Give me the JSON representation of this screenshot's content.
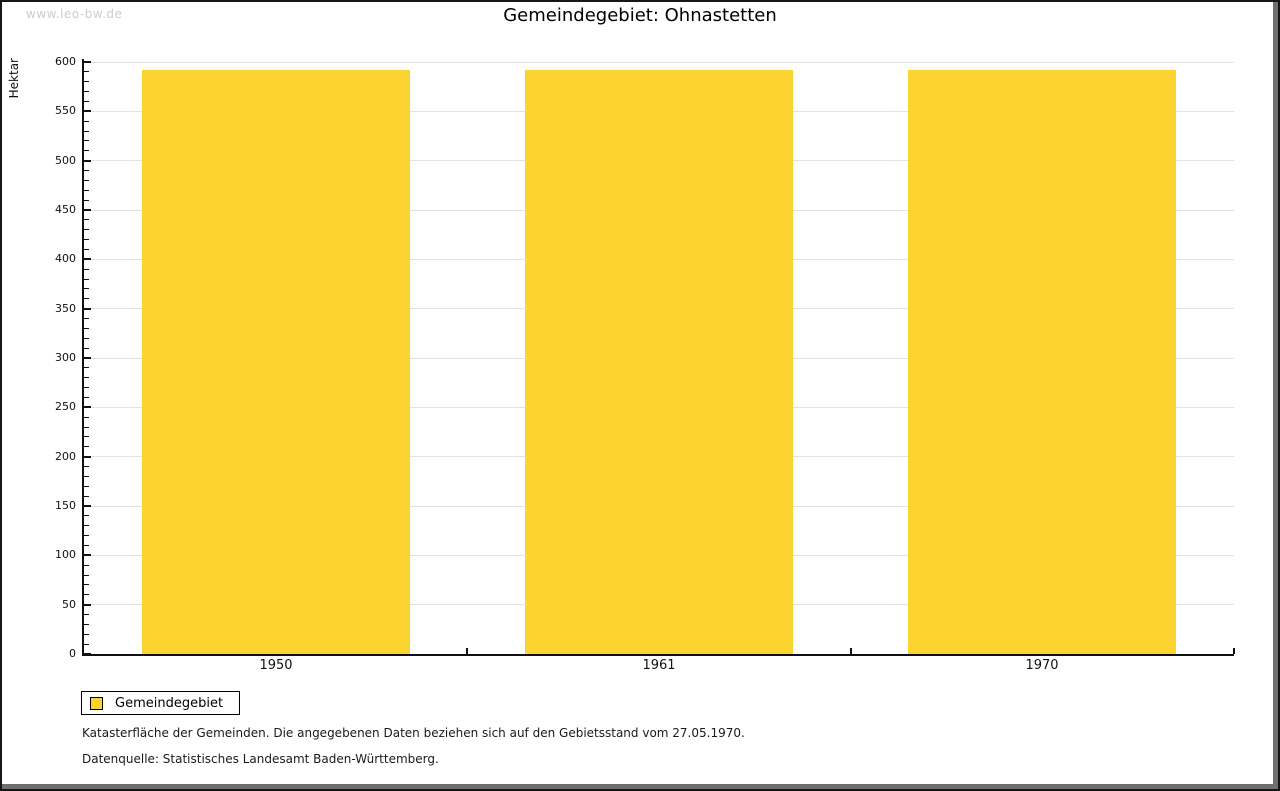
{
  "watermark": "www.leo-bw.de",
  "title": "Gemeindegebiet: Ohnastetten",
  "chart_data": {
    "type": "bar",
    "title": "Gemeindegebiet: Ohnastetten",
    "categories": [
      "1950",
      "1961",
      "1970"
    ],
    "series": [
      {
        "name": "Gemeindegebiet",
        "values": [
          592,
          592,
          592
        ]
      }
    ],
    "xlabel": "",
    "ylabel": "Hektar",
    "ylim": [
      0,
      600
    ],
    "y_major_step": 50,
    "y_minor_step": 10,
    "bar_color": "#fcd32f",
    "grid": true,
    "gridline_color": "#e2e2e2",
    "legend_position": "bottom-left"
  },
  "legend": {
    "items": [
      {
        "label": "Gemeindegebiet",
        "color": "#fcd32f"
      }
    ]
  },
  "footnotes": [
    "Katasterfläche der Gemeinden. Die angegebenen Daten beziehen sich auf den Gebietsstand vom 27.05.1970.",
    "Datenquelle: Statistisches Landesamt Baden-Württemberg."
  ]
}
